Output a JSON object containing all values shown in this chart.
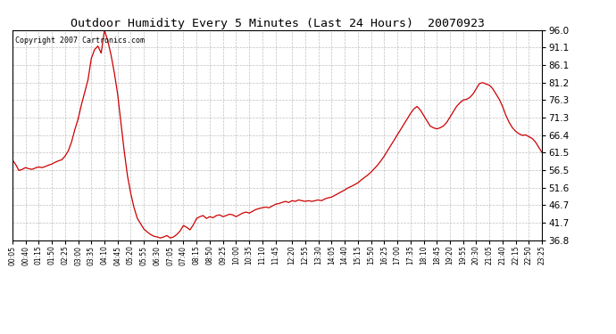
{
  "title": "Outdoor Humidity Every 5 Minutes (Last 24 Hours)  20070923",
  "copyright_text": "Copyright 2007 Cartronics.com",
  "line_color": "#cc0000",
  "background_color": "#ffffff",
  "grid_color": "#b0b0b0",
  "yticks": [
    36.8,
    41.7,
    46.7,
    51.6,
    56.5,
    61.5,
    66.4,
    71.3,
    76.3,
    81.2,
    86.1,
    91.1,
    96.0
  ],
  "ymin": 36.8,
  "ymax": 96.0,
  "xtick_labels": [
    "00:05",
    "00:40",
    "01:15",
    "01:50",
    "02:25",
    "03:00",
    "03:35",
    "04:10",
    "04:45",
    "05:20",
    "05:55",
    "06:30",
    "07:05",
    "07:40",
    "08:15",
    "08:50",
    "09:25",
    "10:00",
    "10:35",
    "11:10",
    "11:45",
    "12:20",
    "12:55",
    "13:30",
    "14:05",
    "14:40",
    "15:15",
    "15:50",
    "16:25",
    "17:00",
    "17:35",
    "18:10",
    "18:45",
    "19:20",
    "19:55",
    "20:30",
    "21:05",
    "21:40",
    "22:15",
    "22:50",
    "23:25"
  ],
  "humidity_data": [
    59.5,
    58.2,
    56.5,
    56.8,
    57.3,
    57.0,
    56.8,
    57.2,
    57.5,
    57.3,
    57.6,
    58.0,
    58.3,
    58.8,
    59.2,
    59.5,
    60.5,
    62.0,
    64.5,
    68.0,
    71.0,
    75.0,
    78.5,
    82.0,
    88.0,
    90.5,
    91.5,
    89.5,
    96.0,
    93.0,
    89.0,
    84.0,
    78.0,
    70.0,
    62.0,
    55.0,
    50.0,
    46.0,
    43.0,
    41.5,
    40.0,
    39.2,
    38.5,
    38.0,
    37.8,
    37.5,
    37.8,
    38.2,
    37.5,
    37.8,
    38.5,
    39.5,
    41.0,
    40.5,
    39.8,
    41.2,
    43.0,
    43.5,
    43.8,
    43.0,
    43.5,
    43.2,
    43.8,
    44.0,
    43.5,
    43.8,
    44.2,
    44.0,
    43.5,
    44.0,
    44.5,
    44.8,
    44.5,
    45.0,
    45.5,
    45.8,
    46.0,
    46.2,
    46.0,
    46.5,
    47.0,
    47.2,
    47.5,
    47.8,
    47.5,
    48.0,
    47.8,
    48.2,
    48.0,
    47.8,
    48.0,
    47.8,
    48.0,
    48.2,
    48.0,
    48.5,
    48.8,
    49.0,
    49.5,
    50.0,
    50.5,
    51.0,
    51.6,
    52.0,
    52.5,
    53.0,
    53.8,
    54.5,
    55.2,
    56.0,
    57.0,
    58.0,
    59.2,
    60.5,
    62.0,
    63.5,
    65.0,
    66.5,
    68.0,
    69.5,
    71.0,
    72.5,
    73.8,
    74.5,
    73.5,
    72.0,
    70.5,
    69.0,
    68.5,
    68.2,
    68.5,
    69.0,
    70.0,
    71.5,
    73.0,
    74.5,
    75.5,
    76.3,
    76.5,
    77.0,
    78.0,
    79.5,
    81.0,
    81.2,
    80.8,
    80.5,
    79.5,
    78.0,
    76.5,
    74.5,
    72.0,
    70.0,
    68.5,
    67.5,
    66.8,
    66.4,
    66.5,
    66.0,
    65.5,
    64.5,
    63.0,
    61.5
  ]
}
